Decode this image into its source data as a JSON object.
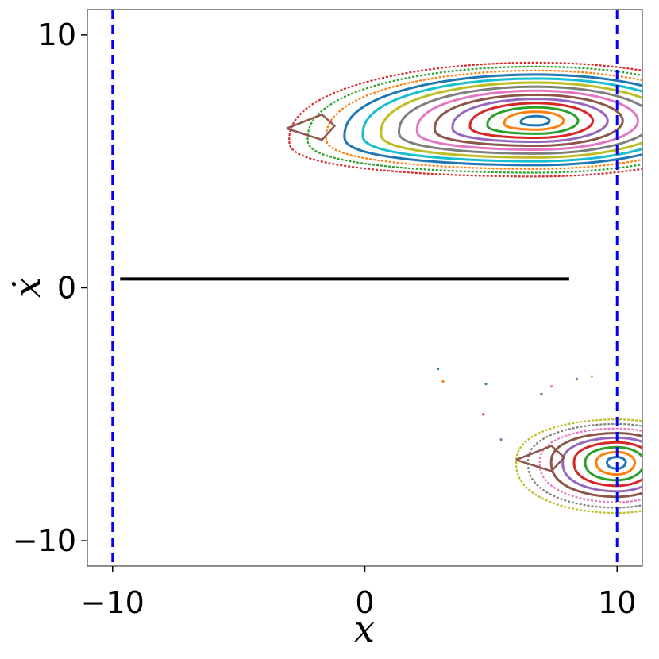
{
  "chart_data": {
    "type": "scatter",
    "title": "",
    "xlabel": "x",
    "ylabel": "ẋ",
    "xlim": [
      -11,
      11
    ],
    "ylim": [
      -11,
      11
    ],
    "xticks": [
      -10,
      0,
      10
    ],
    "xtick_labels": [
      "−10",
      "0",
      "10"
    ],
    "yticks": [
      -10,
      0,
      10
    ],
    "ytick_labels": [
      "−10",
      "0",
      "10"
    ],
    "grid": false,
    "legend": "none",
    "boundary_lines": {
      "x_values": [
        -10,
        10
      ],
      "color": "#0000ee",
      "style": "dashed"
    },
    "segment": {
      "x": [
        -9.7,
        8.1
      ],
      "y": [
        0.35,
        0.35
      ],
      "color": "#000000"
    },
    "upper_island": {
      "center": [
        6.8,
        6.6
      ],
      "outer_x_range": [
        -3.0,
        10.0
      ],
      "outer_y_range": [
        4.4,
        8.9
      ],
      "tip": [
        -3.1,
        6.3
      ],
      "clipped_at_x": 10
    },
    "lower_island": {
      "center": [
        10.0,
        -6.9
      ],
      "outer_x_range": [
        6.0,
        10.0
      ],
      "outer_y_range": [
        -8.9,
        -5.2
      ],
      "tip": [
        6.0,
        -6.8
      ],
      "clipped_at_x": 10
    },
    "stray_points": [
      [
        2.9,
        -3.2
      ],
      [
        3.1,
        -3.7
      ],
      [
        4.8,
        -3.8
      ],
      [
        4.7,
        -5.0
      ],
      [
        5.4,
        -6.0
      ],
      [
        7.0,
        -4.2
      ],
      [
        7.4,
        -3.9
      ],
      [
        8.4,
        -3.6
      ],
      [
        9.0,
        -3.5
      ]
    ],
    "series_colors": [
      "#1f77b4",
      "#ff7f0e",
      "#2ca02c",
      "#d62728",
      "#9467bd",
      "#8c564b",
      "#e377c2",
      "#7f7f7f",
      "#bcbd22",
      "#17becf"
    ]
  }
}
